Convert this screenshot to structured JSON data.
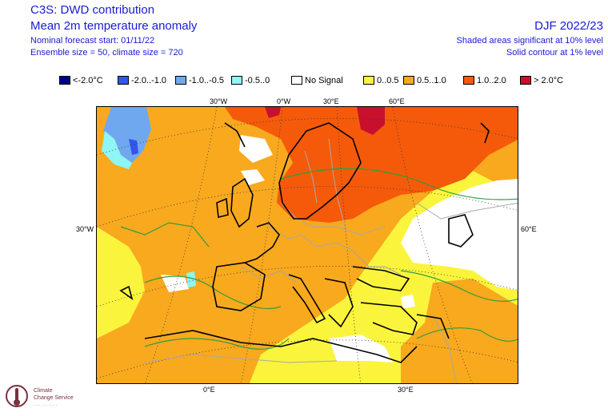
{
  "header": {
    "title": "C3S: DWD contribution",
    "subtitle": "Mean 2m temperature anomaly",
    "forecast_start": "Nominal forecast start: 01/11/22",
    "ensemble": "Ensemble size = 50, climate size = 720",
    "season": "DJF 2022/23",
    "sig_shaded": "Shaded areas significant at 10% level",
    "sig_contour": "Solid contour at 1% level"
  },
  "legend": [
    {
      "label": "<-2.0°C",
      "color": "#00008b"
    },
    {
      "label": "-2.0..-1.0",
      "color": "#3355ee"
    },
    {
      "label": "-1.0..-0.5",
      "color": "#6fa8ee"
    },
    {
      "label": "-0.5..0",
      "color": "#8ef6f6"
    },
    {
      "label": "No Signal",
      "color": "#ffffff"
    },
    {
      "label": "0..0.5",
      "color": "#fbf43c"
    },
    {
      "label": "0.5..1.0",
      "color": "#f8a91e"
    },
    {
      "label": "1.0..2.0",
      "color": "#f55a0a"
    },
    {
      "label": "> 2.0°C",
      "color": "#c8102e"
    }
  ],
  "axes": {
    "top_lon": [
      "30°W",
      "0°W",
      "30°E",
      "60°E"
    ],
    "left_lat": "30°W",
    "right_lat": "60°E",
    "bottom_lon": [
      "0°E",
      "30°E"
    ]
  },
  "logo": {
    "line1": "Climate",
    "line2": "Change Service",
    "line3": "·  ·  · · · · · · · ·"
  },
  "colors": {
    "text_blue": "#1a1ad6",
    "land_coast": "#000000",
    "contour_green": "#2e9e3c",
    "borders_gray": "#a8a8a8"
  }
}
